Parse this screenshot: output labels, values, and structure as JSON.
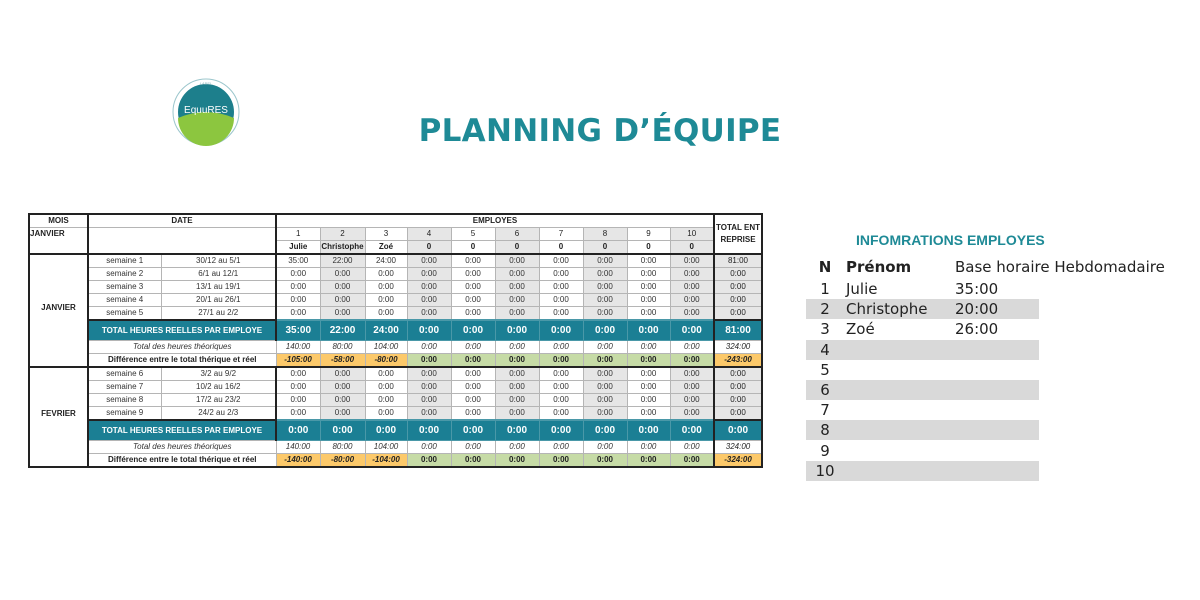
{
  "logo": {
    "label_top": "LABEL",
    "name": "EquuRES",
    "tagline": "BIEN-ÊTRE AU TRAVAIL"
  },
  "title": "PLANNING D’ÉQUIPE",
  "planning": {
    "headers": {
      "mois": "MOIS",
      "date": "DATE",
      "employes": "EMPLOYES",
      "total": "TOTAL ENTREPRISE",
      "month_selected": "JANVIER"
    },
    "employee_numbers": [
      "1",
      "2",
      "3",
      "4",
      "5",
      "6",
      "7",
      "8",
      "9",
      "10"
    ],
    "employee_names": [
      "Julie",
      "Christophe",
      "Zoé",
      "0",
      "0",
      "0",
      "0",
      "0",
      "0",
      "0"
    ],
    "months": [
      {
        "name": "JANVIER",
        "weeks": [
          {
            "label": "semaine 1",
            "range": "30/12  au  5/1",
            "values": [
              "35:00",
              "22:00",
              "24:00",
              "0:00",
              "0:00",
              "0:00",
              "0:00",
              "0:00",
              "0:00",
              "0:00"
            ],
            "total": "81:00"
          },
          {
            "label": "semaine 2",
            "range": "6/1  au  12/1",
            "values": [
              "0:00",
              "0:00",
              "0:00",
              "0:00",
              "0:00",
              "0:00",
              "0:00",
              "0:00",
              "0:00",
              "0:00"
            ],
            "total": "0:00"
          },
          {
            "label": "semaine 3",
            "range": "13/1  au  19/1",
            "values": [
              "0:00",
              "0:00",
              "0:00",
              "0:00",
              "0:00",
              "0:00",
              "0:00",
              "0:00",
              "0:00",
              "0:00"
            ],
            "total": "0:00"
          },
          {
            "label": "semaine 4",
            "range": "20/1  au  26/1",
            "values": [
              "0:00",
              "0:00",
              "0:00",
              "0:00",
              "0:00",
              "0:00",
              "0:00",
              "0:00",
              "0:00",
              "0:00"
            ],
            "total": "0:00"
          },
          {
            "label": "semaine 5",
            "range": "27/1  au  2/2",
            "values": [
              "0:00",
              "0:00",
              "0:00",
              "0:00",
              "0:00",
              "0:00",
              "0:00",
              "0:00",
              "0:00",
              "0:00"
            ],
            "total": "0:00"
          }
        ],
        "total_reel": {
          "label": "TOTAL HEURES REELLES PAR EMPLOYE",
          "values": [
            "35:00",
            "22:00",
            "24:00",
            "0:00",
            "0:00",
            "0:00",
            "0:00",
            "0:00",
            "0:00",
            "0:00"
          ],
          "total": "81:00"
        },
        "theorique": {
          "label": "Total des heures théoriques",
          "values": [
            "140:00",
            "80:00",
            "104:00",
            "0:00",
            "0:00",
            "0:00",
            "0:00",
            "0:00",
            "0:00",
            "0:00"
          ],
          "total": "324:00"
        },
        "difference": {
          "label": "Différence entre le total thérique et réel",
          "values": [
            "-105:00",
            "-58:00",
            "-80:00",
            "0:00",
            "0:00",
            "0:00",
            "0:00",
            "0:00",
            "0:00",
            "0:00"
          ],
          "total": "-243:00"
        }
      },
      {
        "name": "FEVRIER",
        "weeks": [
          {
            "label": "semaine 6",
            "range": "3/2  au  9/2",
            "values": [
              "0:00",
              "0:00",
              "0:00",
              "0:00",
              "0:00",
              "0:00",
              "0:00",
              "0:00",
              "0:00",
              "0:00"
            ],
            "total": "0:00"
          },
          {
            "label": "semaine 7",
            "range": "10/2  au  16/2",
            "values": [
              "0:00",
              "0:00",
              "0:00",
              "0:00",
              "0:00",
              "0:00",
              "0:00",
              "0:00",
              "0:00",
              "0:00"
            ],
            "total": "0:00"
          },
          {
            "label": "semaine 8",
            "range": "17/2  au  23/2",
            "values": [
              "0:00",
              "0:00",
              "0:00",
              "0:00",
              "0:00",
              "0:00",
              "0:00",
              "0:00",
              "0:00",
              "0:00"
            ],
            "total": "0:00"
          },
          {
            "label": "semaine 9",
            "range": "24/2  au  2/3",
            "values": [
              "0:00",
              "0:00",
              "0:00",
              "0:00",
              "0:00",
              "0:00",
              "0:00",
              "0:00",
              "0:00",
              "0:00"
            ],
            "total": "0:00"
          }
        ],
        "total_reel": {
          "label": "TOTAL HEURES REELLES PAR EMPLOYE",
          "values": [
            "0:00",
            "0:00",
            "0:00",
            "0:00",
            "0:00",
            "0:00",
            "0:00",
            "0:00",
            "0:00",
            "0:00"
          ],
          "total": "0:00"
        },
        "theorique": {
          "label": "Total des heures théoriques",
          "values": [
            "140:00",
            "80:00",
            "104:00",
            "0:00",
            "0:00",
            "0:00",
            "0:00",
            "0:00",
            "0:00",
            "0:00"
          ],
          "total": "324:00"
        },
        "difference": {
          "label": "Différence entre le total thérique et réel",
          "values": [
            "-140:00",
            "-80:00",
            "-104:00",
            "0:00",
            "0:00",
            "0:00",
            "0:00",
            "0:00",
            "0:00",
            "0:00"
          ],
          "total": "-324:00"
        }
      }
    ]
  },
  "info": {
    "title": "INFOMRATIONS EMPLOYES",
    "headers": {
      "n": "N",
      "prenom": "Prénom",
      "base": "Base horaire Hebdomadaire"
    },
    "rows": [
      {
        "n": "1",
        "prenom": "Julie",
        "base": "35:00"
      },
      {
        "n": "2",
        "prenom": "Christophe",
        "base": "20:00"
      },
      {
        "n": "3",
        "prenom": "Zoé",
        "base": "26:00"
      },
      {
        "n": "4",
        "prenom": "",
        "base": ""
      },
      {
        "n": "5",
        "prenom": "",
        "base": ""
      },
      {
        "n": "6",
        "prenom": "",
        "base": ""
      },
      {
        "n": "7",
        "prenom": "",
        "base": ""
      },
      {
        "n": "8",
        "prenom": "",
        "base": ""
      },
      {
        "n": "9",
        "prenom": "",
        "base": ""
      },
      {
        "n": "10",
        "prenom": "",
        "base": ""
      }
    ]
  },
  "colors": {
    "teal": "#1b7f94",
    "title": "#1e8a96",
    "negative": "#fcc96a",
    "positive": "#c6dba6",
    "shade": "#e6e6e6"
  }
}
